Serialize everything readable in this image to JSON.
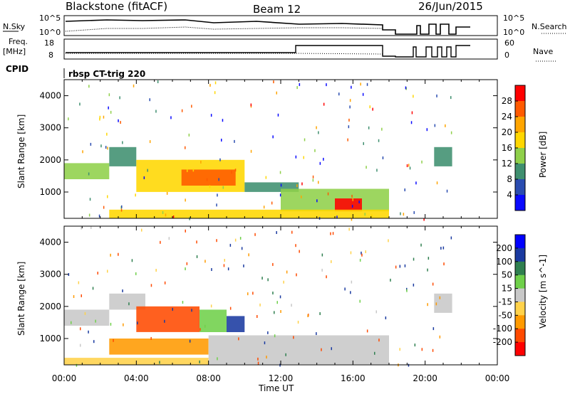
{
  "header": {
    "station": "Blackstone (fitACF)",
    "beam": "Beam 12",
    "date": "26/Jun/2015"
  },
  "status_panels": {
    "nsky_label": "N.Sky",
    "nsky_ticks": [
      "10^5",
      "10^0"
    ],
    "nsearch_label": "N.Search",
    "nsearch_ticks": [
      "10^5",
      "10^0"
    ],
    "freq_label_top": "Freq.",
    "freq_label_bottom": "[MHz]",
    "freq_ticks": [
      "18",
      "8"
    ],
    "nave_label": "Nave",
    "nave_ticks": [
      "60",
      "0"
    ],
    "cpid_label": "CPID",
    "cpid_value": "rbsp CT-trig 220"
  },
  "colors": {
    "power_scale": [
      "#0a0aff",
      "#2a4cb0",
      "#3f8f6f",
      "#8fd04a",
      "#ffd700",
      "#ffa500",
      "#ff5a00",
      "#ff0000"
    ],
    "velocity_scale": [
      "#ff0000",
      "#ff4a00",
      "#ff9a00",
      "#ffd24a",
      "#c8c8c8",
      "#6fd04a",
      "#2f7f4f",
      "#1a3aa0",
      "#0000ff"
    ],
    "ground_scatter": "#c8c8c8",
    "axis": "#000000"
  },
  "chart_data": [
    {
      "type": "heatmap",
      "panel": "power",
      "ylabel": "Slant Range [km]",
      "colorbar_label": "Power [dB]",
      "colorbar_ticks": [
        "28",
        "24",
        "20",
        "16",
        "12",
        "8",
        "4"
      ],
      "yticks": [
        "4000",
        "3000",
        "2000",
        "1000"
      ],
      "ylim": [
        180,
        4500
      ],
      "xlim": [
        "00:00",
        "24:00"
      ],
      "bands": [
        {
          "t_start": 0.0,
          "t_end": 2.5,
          "r_min": 1400,
          "r_max": 1900,
          "value": 12
        },
        {
          "t_start": 2.5,
          "t_end": 4.0,
          "r_min": 1800,
          "r_max": 2400,
          "value": 8
        },
        {
          "t_start": 4.0,
          "t_end": 10.0,
          "r_min": 1000,
          "r_max": 2000,
          "value": 16
        },
        {
          "t_start": 6.5,
          "t_end": 9.5,
          "r_min": 1200,
          "r_max": 1700,
          "value": 24
        },
        {
          "t_start": 10.0,
          "t_end": 13.0,
          "r_min": 1000,
          "r_max": 1300,
          "value": 8
        },
        {
          "t_start": 12.0,
          "t_end": 18.0,
          "r_min": 400,
          "r_max": 1100,
          "value": 12
        },
        {
          "t_start": 15.0,
          "t_end": 16.5,
          "r_min": 400,
          "r_max": 800,
          "value": 28
        },
        {
          "t_start": 2.5,
          "t_end": 18.0,
          "r_min": 180,
          "r_max": 450,
          "value": 16
        },
        {
          "t_start": 20.5,
          "t_end": 21.5,
          "r_min": 1800,
          "r_max": 2400,
          "value": 8
        }
      ]
    },
    {
      "type": "heatmap",
      "panel": "velocity",
      "ylabel": "Slant Range [km]",
      "xlabel": "Time UT",
      "colorbar_label": "Velocity [m s^-1]",
      "colorbar_ticks": [
        "200",
        "100",
        "50",
        "15",
        "-15",
        "-50",
        "-100",
        "-200"
      ],
      "yticks": [
        "4000",
        "3000",
        "2000",
        "1000"
      ],
      "xticks": [
        "00:00",
        "04:00",
        "08:00",
        "12:00",
        "16:00",
        "20:00",
        "00:00"
      ],
      "ylim": [
        180,
        4500
      ],
      "xlim": [
        "00:00",
        "24:00"
      ],
      "bands": [
        {
          "t_start": 0.0,
          "t_end": 2.5,
          "r_min": 1400,
          "r_max": 1900,
          "value": 0
        },
        {
          "t_start": 2.5,
          "t_end": 4.5,
          "r_min": 1900,
          "r_max": 2400,
          "value": 0
        },
        {
          "t_start": 4.0,
          "t_end": 7.5,
          "r_min": 1200,
          "r_max": 2000,
          "value": -150
        },
        {
          "t_start": 7.5,
          "t_end": 9.0,
          "r_min": 1200,
          "r_max": 1900,
          "value": 30
        },
        {
          "t_start": 9.0,
          "t_end": 10.0,
          "r_min": 1200,
          "r_max": 1700,
          "value": 150
        },
        {
          "t_start": 2.5,
          "t_end": 8.0,
          "r_min": 500,
          "r_max": 1000,
          "value": -60
        },
        {
          "t_start": 8.0,
          "t_end": 18.0,
          "r_min": 200,
          "r_max": 1100,
          "value": 0
        },
        {
          "t_start": 0.0,
          "t_end": 8.0,
          "r_min": 180,
          "r_max": 400,
          "value": -30
        },
        {
          "t_start": 20.5,
          "t_end": 21.5,
          "r_min": 1800,
          "r_max": 2400,
          "value": 0
        }
      ]
    }
  ]
}
